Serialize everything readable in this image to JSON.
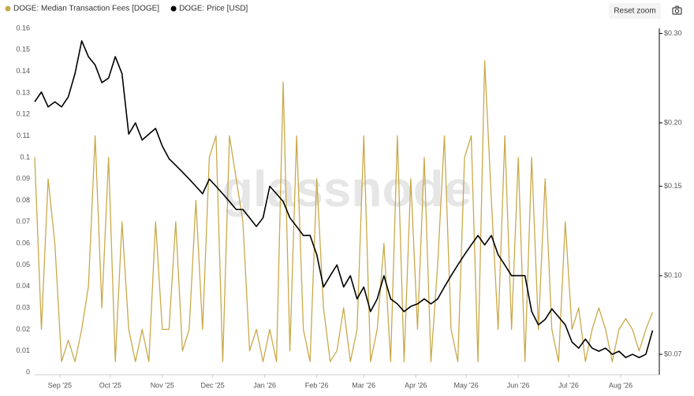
{
  "chart_data": {
    "type": "line",
    "watermark": "glassnode",
    "reset_button": "Reset zoom",
    "x": [
      0,
      4,
      8,
      12,
      16,
      20,
      24,
      28,
      32,
      36,
      40,
      44,
      48,
      52,
      56,
      60,
      64,
      68,
      72,
      76,
      80,
      84,
      88,
      92,
      96,
      100,
      104,
      108,
      112,
      116,
      120,
      124,
      128,
      132,
      136,
      140,
      144,
      148,
      152,
      156,
      160,
      164,
      168,
      172,
      176,
      180,
      184,
      188,
      192,
      196,
      200,
      204,
      208,
      212,
      216,
      220,
      224,
      228,
      232,
      236,
      240,
      244,
      248,
      252,
      256,
      260,
      264,
      268,
      272,
      276,
      280,
      284,
      288,
      292,
      296,
      300,
      304,
      308,
      312,
      316,
      320,
      324,
      328,
      332,
      336,
      340,
      344,
      348,
      352,
      356,
      360,
      364,
      368
    ],
    "xlim": [
      0,
      372
    ],
    "xticks": [
      {
        "value": 15,
        "label": "Sep '25"
      },
      {
        "value": 45,
        "label": "Oct '25"
      },
      {
        "value": 76,
        "label": "Nov '25"
      },
      {
        "value": 106,
        "label": "Dec '25"
      },
      {
        "value": 137,
        "label": "Jan '26"
      },
      {
        "value": 168,
        "label": "Feb '26"
      },
      {
        "value": 196,
        "label": "Mar '26"
      },
      {
        "value": 227,
        "label": "Apr '26"
      },
      {
        "value": 257,
        "label": "May '26"
      },
      {
        "value": 288,
        "label": "Jun '26"
      },
      {
        "value": 318,
        "label": "Jul '26"
      },
      {
        "value": 349,
        "label": "Aug '26"
      }
    ],
    "ylim": [
      0,
      0.16
    ],
    "yticks": [
      0,
      0.01,
      0.02,
      0.03,
      0.04,
      0.05,
      0.06,
      0.07,
      0.08,
      0.09,
      0.1,
      0.11,
      0.12,
      0.13,
      0.14,
      0.15,
      0.16
    ],
    "y2lim": [
      0.0645,
      0.307
    ],
    "y2scale": "log",
    "y2ticks": [
      {
        "value": 0.07,
        "label": "$0.07"
      },
      {
        "value": 0.1,
        "label": "$0.10"
      },
      {
        "value": 0.15,
        "label": "$0.15"
      },
      {
        "value": 0.2,
        "label": "$0.20"
      },
      {
        "value": 0.3,
        "label": "$0.30"
      }
    ],
    "series": [
      {
        "name": "DOGE: Median Transaction Fees [DOGE]",
        "color": "#c9a94a",
        "values": [
          0.1,
          0.02,
          0.09,
          0.06,
          0.005,
          0.015,
          0.005,
          0.02,
          0.04,
          0.11,
          0.03,
          0.1,
          0.005,
          0.07,
          0.02,
          0.005,
          0.02,
          0.005,
          0.07,
          0.02,
          0.02,
          0.07,
          0.01,
          0.02,
          0.08,
          0.02,
          0.1,
          0.11,
          0.005,
          0.11,
          0.09,
          0.07,
          0.01,
          0.02,
          0.005,
          0.02,
          0.005,
          0.135,
          0.01,
          0.11,
          0.02,
          0.005,
          0.09,
          0.03,
          0.005,
          0.01,
          0.03,
          0.005,
          0.02,
          0.11,
          0.005,
          0.02,
          0.06,
          0.005,
          0.11,
          0.005,
          0.09,
          0.02,
          0.1,
          0.005,
          0.05,
          0.11,
          0.02,
          0.005,
          0.1,
          0.11,
          0.005,
          0.145,
          0.08,
          0.02,
          0.11,
          0.02,
          0.1,
          0.005,
          0.1,
          0.02,
          0.09,
          0.02,
          0.005,
          0.07,
          0.02,
          0.03,
          0.005,
          0.02,
          0.03,
          0.02,
          0.005,
          0.02,
          0.025,
          0.02,
          0.01,
          0.02,
          0.028
        ]
      },
      {
        "name": "DOGE: Price [USD]",
        "color": "#000000",
        "axis": "y2",
        "values": [
          0.22,
          0.23,
          0.215,
          0.22,
          0.215,
          0.225,
          0.25,
          0.29,
          0.27,
          0.26,
          0.24,
          0.245,
          0.27,
          0.25,
          0.19,
          0.2,
          0.185,
          0.19,
          0.195,
          0.18,
          0.17,
          0.165,
          0.16,
          0.155,
          0.15,
          0.145,
          0.155,
          0.15,
          0.145,
          0.14,
          0.135,
          0.135,
          0.13,
          0.125,
          0.13,
          0.15,
          0.145,
          0.14,
          0.13,
          0.125,
          0.12,
          0.12,
          0.11,
          0.095,
          0.1,
          0.105,
          0.095,
          0.1,
          0.09,
          0.095,
          0.085,
          0.09,
          0.1,
          0.09,
          0.088,
          0.085,
          0.087,
          0.088,
          0.09,
          0.088,
          0.09,
          0.095,
          0.1,
          0.105,
          0.11,
          0.115,
          0.12,
          0.115,
          0.12,
          0.11,
          0.105,
          0.1,
          0.1,
          0.1,
          0.085,
          0.08,
          0.082,
          0.086,
          0.083,
          0.08,
          0.074,
          0.072,
          0.075,
          0.072,
          0.071,
          0.072,
          0.07,
          0.071,
          0.069,
          0.07,
          0.069,
          0.07,
          0.078
        ]
      }
    ]
  }
}
